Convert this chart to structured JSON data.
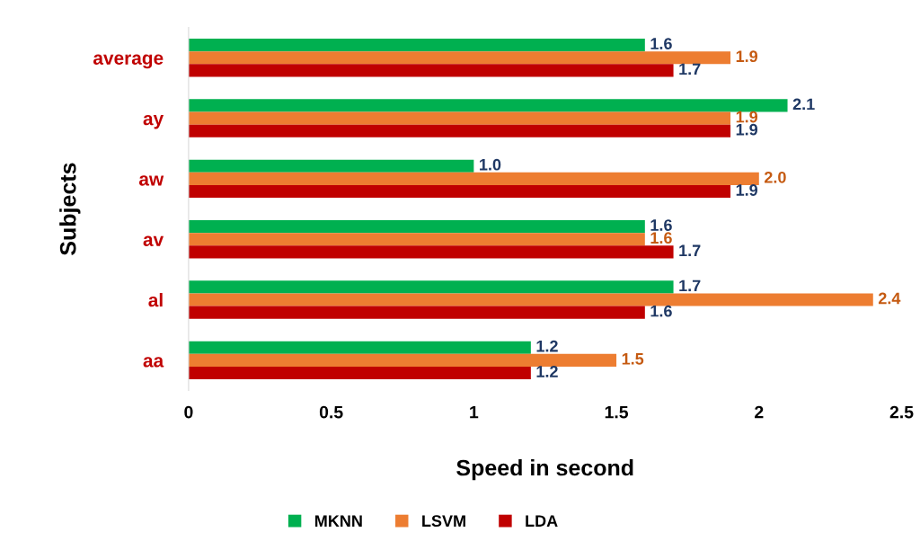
{
  "chart_data": {
    "type": "bar",
    "orientation": "horizontal",
    "xlabel": "Speed in second",
    "ylabel": "Subjects",
    "categories": [
      "average",
      "ay",
      "aw",
      "av",
      "al",
      "aa"
    ],
    "series": [
      {
        "name": "MKNN",
        "color": "#00b050",
        "values": [
          1.6,
          2.1,
          1.0,
          1.6,
          1.7,
          1.2
        ],
        "value_labels": [
          "1.6",
          "2.1",
          "1.0",
          "1.6",
          "1.7",
          "1.2"
        ]
      },
      {
        "name": "LSVM",
        "color": "#ed7d31",
        "values": [
          1.9,
          1.9,
          2.0,
          1.6,
          2.4,
          1.5
        ],
        "value_labels": [
          "1.9",
          "1.9",
          "2.0",
          "1.6",
          "2.4",
          "1.5"
        ]
      },
      {
        "name": "LDA",
        "color": "#c00000",
        "values": [
          1.7,
          1.9,
          1.9,
          1.7,
          1.6,
          1.2
        ],
        "value_labels": [
          "1.7",
          "1.9",
          "1.9",
          "1.7",
          "1.6",
          "1.2"
        ]
      }
    ],
    "xlim": [
      0,
      2.5
    ],
    "xticks": [
      0,
      0.5,
      1,
      1.5,
      2,
      2.5
    ],
    "grid": false,
    "legend": "bottom"
  }
}
